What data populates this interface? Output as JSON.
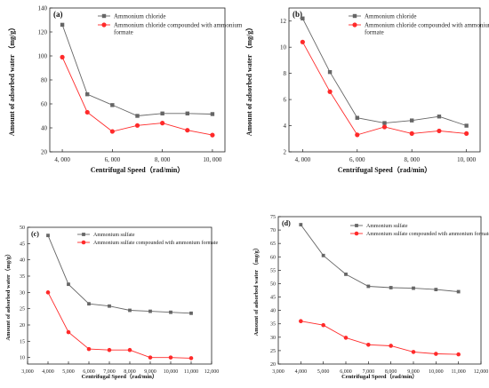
{
  "chart_data": [
    {
      "type": "line",
      "panel_label": "(a)",
      "x": [
        4000,
        5000,
        6000,
        7000,
        8000,
        9000,
        10000
      ],
      "series": [
        {
          "name": "Ammonium chloride",
          "color": "#666666",
          "marker": "square",
          "values": [
            126,
            68,
            59,
            50,
            52,
            52,
            51.5
          ]
        },
        {
          "name": "Ammonium chloride compounded with ammonium formate",
          "color": "#ff2a2a",
          "marker": "circle",
          "values": [
            99,
            53,
            37,
            42,
            44,
            38,
            34
          ]
        }
      ],
      "xlabel": "Centrifugal Speed（rad/min）",
      "ylabel": "Amount of adsorbed water （mg/g）",
      "xlim": [
        3500,
        10500
      ],
      "ylim": [
        20,
        140
      ],
      "xticks": [
        4000,
        6000,
        8000,
        10000
      ],
      "xtick_labels": [
        "4, 000",
        "6, 000",
        "8, 000",
        "10, 000"
      ],
      "yticks": [
        20,
        40,
        60,
        80,
        100,
        120,
        140
      ],
      "legend": "top-right",
      "grid": false
    },
    {
      "type": "line",
      "panel_label": "(b)",
      "x": [
        4000,
        5000,
        6000,
        7000,
        8000,
        9000,
        10000
      ],
      "series": [
        {
          "name": "Ammonium chloride",
          "color": "#666666",
          "marker": "square",
          "values": [
            12.2,
            8.1,
            4.6,
            4.2,
            4.4,
            4.7,
            4.0
          ]
        },
        {
          "name": "Ammonium chloride compounded with ammonium formate",
          "color": "#ff2a2a",
          "marker": "circle",
          "values": [
            10.4,
            6.6,
            3.3,
            3.9,
            3.4,
            3.6,
            3.4
          ]
        }
      ],
      "xlabel": "Centrifugal Speed（rad/min）",
      "ylabel": "Amount of adsorbed water （mg/g）",
      "xlim": [
        3500,
        10500
      ],
      "ylim": [
        2,
        13
      ],
      "xticks": [
        4000,
        6000,
        8000,
        10000
      ],
      "xtick_labels": [
        "4, 000",
        "6, 000",
        "8, 000",
        "10, 000"
      ],
      "yticks": [
        2,
        4,
        6,
        8,
        10,
        12
      ],
      "legend": "top-right",
      "grid": false
    },
    {
      "type": "line",
      "panel_label": "(c)",
      "x": [
        4000,
        5000,
        6000,
        7000,
        8000,
        9000,
        10000,
        11000
      ],
      "series": [
        {
          "name": "Ammonium sulfate",
          "color": "#666666",
          "marker": "square",
          "values": [
            47.5,
            32.5,
            26.5,
            25.8,
            24.5,
            24.2,
            23.9,
            23.6
          ]
        },
        {
          "name": "Ammonium sulfate compounded with ammonium formate",
          "color": "#ff2a2a",
          "marker": "circle",
          "values": [
            30,
            17.8,
            12.6,
            12.3,
            12.3,
            10,
            10,
            9.8
          ]
        }
      ],
      "xlabel": "Centrifugal Speed（rad/min）",
      "ylabel": "Amount of adsorbed water（mg/g）",
      "xlim": [
        3000,
        12000
      ],
      "ylim": [
        8,
        50
      ],
      "xticks": [
        3000,
        4000,
        5000,
        6000,
        7000,
        8000,
        9000,
        10000,
        11000,
        12000
      ],
      "xtick_labels": [
        "3,000",
        "4,000",
        "5,000",
        "6,000",
        "7,000",
        "8,000",
        "9,000",
        "10,000",
        "11,000",
        "12,000"
      ],
      "yticks": [
        10,
        15,
        20,
        25,
        30,
        35,
        40,
        45,
        50
      ],
      "legend": "top-right",
      "grid": false
    },
    {
      "type": "line",
      "panel_label": "(d)",
      "x": [
        4000,
        5000,
        6000,
        7000,
        8000,
        9000,
        10000,
        11000
      ],
      "series": [
        {
          "name": "Ammonium sulfate",
          "color": "#666666",
          "marker": "square",
          "values": [
            72,
            60.5,
            53.5,
            49,
            48.5,
            48.3,
            47.8,
            47
          ]
        },
        {
          "name": "Ammonium sulfate compounded with ammonium formate",
          "color": "#ff2a2a",
          "marker": "circle",
          "values": [
            36,
            34.5,
            29.8,
            27.2,
            26.8,
            24.5,
            23.8,
            23.6
          ]
        }
      ],
      "xlabel": "Centrifugal Speed（rad/min）",
      "ylabel": "Amount of adsorbed water （mg/g）",
      "xlim": [
        3000,
        12000
      ],
      "ylim": [
        20,
        75
      ],
      "xticks": [
        3000,
        4000,
        5000,
        6000,
        7000,
        8000,
        9000,
        10000,
        11000,
        12000
      ],
      "xtick_labels": [
        "3,000",
        "4,000",
        "5,000",
        "6,000",
        "7,000",
        "8,000",
        "9,000",
        "10,000",
        "11,000",
        "12,000"
      ],
      "yticks": [
        20,
        25,
        30,
        35,
        40,
        45,
        50,
        55,
        60,
        65,
        70,
        75
      ],
      "legend": "top-right",
      "grid": false
    }
  ]
}
